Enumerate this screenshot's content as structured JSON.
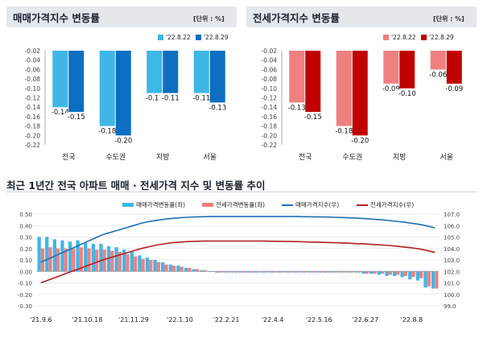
{
  "left_panel": {
    "title": "매매가격지수 변동률",
    "unit": "[단위 : %]",
    "legend": [
      "'22.8.22",
      "'22.8.29"
    ]
  },
  "right_panel": {
    "title": "전세가격지수 변동률",
    "unit": "[단위 : %]",
    "legend": [
      "'22.8.22",
      "'22.8.29"
    ]
  },
  "bottom_panel": {
    "title": "최근 1년간 전국 아파트 매매 · 전세가격 지수 및 변동률 추이",
    "legend": [
      "매매가격변동률(좌)",
      "전세가격변동률(좌)",
      "매매가격지수(우)",
      "전세가격지수(우)"
    ]
  },
  "colors": {
    "sale_light": "#3fb7e6",
    "sale_dark": "#0c6fc1",
    "jeonse_light": "#f08080",
    "jeonse_dark": "#c00000",
    "sale_index_line": "#1f6fb4",
    "jeonse_index_line": "#b21f1f"
  },
  "chart_data": [
    {
      "type": "bar",
      "title": "매매가격지수 변동률",
      "categories": [
        "전국",
        "수도권",
        "지방",
        "서울"
      ],
      "series": [
        {
          "name": "'22.8.22",
          "values": [
            -0.14,
            -0.18,
            -0.11,
            -0.11
          ]
        },
        {
          "name": "'22.8.29",
          "values": [
            -0.15,
            -0.2,
            -0.11,
            -0.13
          ]
        }
      ],
      "data_labels": [
        [
          "-0.14",
          "-0.18",
          "-0.11",
          "-0.11"
        ],
        [
          "-0.15",
          "-0.20",
          "-0.11",
          "-0.13"
        ]
      ],
      "ylim": [
        -0.22,
        -0.02
      ],
      "yticks": [
        -0.02,
        -0.04,
        -0.06,
        -0.08,
        -0.1,
        -0.12,
        -0.14,
        -0.16,
        -0.18,
        -0.2,
        -0.22
      ],
      "ytick_labels": [
        "-0.02",
        "-0.04",
        "-0.06",
        "-0.08",
        "-0.10",
        "-0.12",
        "-0.14",
        "-0.16",
        "-0.18",
        "-0.20",
        "-0.22"
      ],
      "grid": false,
      "legend": "top-right"
    },
    {
      "type": "bar",
      "title": "전세가격지수 변동률",
      "categories": [
        "전국",
        "수도권",
        "지방",
        "서울"
      ],
      "series": [
        {
          "name": "'22.8.22",
          "values": [
            -0.13,
            -0.18,
            -0.09,
            -0.06
          ]
        },
        {
          "name": "'22.8.29",
          "values": [
            -0.15,
            -0.2,
            -0.1,
            -0.09
          ]
        }
      ],
      "data_labels": [
        [
          "-0.13",
          "-0.18",
          "-0.09",
          "-0.06"
        ],
        [
          "-0.15",
          "-0.20",
          "-0.10",
          "-0.09"
        ]
      ],
      "ylim": [
        -0.22,
        -0.02
      ],
      "yticks": [
        -0.02,
        -0.04,
        -0.06,
        -0.08,
        -0.1,
        -0.12,
        -0.14,
        -0.16,
        -0.18,
        -0.2,
        -0.22
      ],
      "ytick_labels": [
        "-0.02",
        "-0.04",
        "-0.06",
        "-0.08",
        "-0.10",
        "-0.12",
        "-0.14",
        "-0.16",
        "-0.18",
        "-0.20",
        "-0.22"
      ],
      "grid": false,
      "legend": "top-right"
    },
    {
      "type": "bar",
      "title": "최근 1년간 전국 아파트 매매 · 전세가격 지수 및 변동률 추이",
      "x_tick_labels": [
        "'21.9.6",
        "'21.10.18",
        "'21.11.29",
        "'22.1.10",
        "'22.2.21",
        "'22.4.4",
        "'22.5.16",
        "'22.6.27",
        "'22.8.8"
      ],
      "x_tick_positions": [
        0,
        6,
        12,
        18,
        24,
        30,
        36,
        42,
        48
      ],
      "n_weeks": 52,
      "series": [
        {
          "name": "매매가격변동률(좌)",
          "axis": "left",
          "kind": "bar",
          "values": [
            0.3,
            0.3,
            0.28,
            0.27,
            0.26,
            0.27,
            0.25,
            0.24,
            0.24,
            0.22,
            0.21,
            0.19,
            0.17,
            0.14,
            0.12,
            0.1,
            0.08,
            0.06,
            0.05,
            0.03,
            0.02,
            0.01,
            0.0,
            -0.01,
            -0.01,
            -0.01,
            -0.01,
            -0.01,
            -0.01,
            -0.01,
            -0.01,
            -0.01,
            -0.01,
            -0.01,
            -0.01,
            -0.01,
            -0.01,
            -0.01,
            -0.01,
            -0.01,
            -0.01,
            -0.01,
            -0.02,
            -0.02,
            -0.03,
            -0.04,
            -0.04,
            -0.05,
            -0.07,
            -0.08,
            -0.14,
            -0.15
          ]
        },
        {
          "name": "전세가격변동률(좌)",
          "axis": "left",
          "kind": "bar",
          "values": [
            0.2,
            0.21,
            0.2,
            0.2,
            0.2,
            0.21,
            0.2,
            0.19,
            0.19,
            0.18,
            0.17,
            0.15,
            0.13,
            0.11,
            0.1,
            0.08,
            0.06,
            0.05,
            0.04,
            0.03,
            0.02,
            0.01,
            0.0,
            -0.01,
            -0.01,
            -0.01,
            -0.01,
            -0.01,
            -0.01,
            -0.01,
            -0.01,
            -0.01,
            -0.01,
            -0.01,
            -0.01,
            -0.01,
            -0.01,
            -0.01,
            -0.01,
            -0.01,
            -0.01,
            -0.01,
            -0.02,
            -0.02,
            -0.02,
            -0.03,
            -0.03,
            -0.04,
            -0.05,
            -0.06,
            -0.13,
            -0.15
          ]
        },
        {
          "name": "매매가격지수(우)",
          "axis": "right",
          "kind": "line",
          "values": [
            102.8,
            103.1,
            103.4,
            103.7,
            104.0,
            104.3,
            104.6,
            104.9,
            105.2,
            105.4,
            105.6,
            105.8,
            106.0,
            106.2,
            106.35,
            106.45,
            106.55,
            106.62,
            106.68,
            106.72,
            106.75,
            106.77,
            106.78,
            106.78,
            106.78,
            106.78,
            106.78,
            106.78,
            106.78,
            106.78,
            106.78,
            106.78,
            106.78,
            106.78,
            106.77,
            106.76,
            106.75,
            106.74,
            106.72,
            106.7,
            106.67,
            106.64,
            106.6,
            106.55,
            106.5,
            106.44,
            106.37,
            106.29,
            106.2,
            106.1,
            105.96,
            105.8
          ]
        },
        {
          "name": "전세가격지수(우)",
          "axis": "right",
          "kind": "line",
          "values": [
            101.0,
            101.25,
            101.5,
            101.75,
            102.0,
            102.25,
            102.5,
            102.75,
            103.0,
            103.2,
            103.4,
            103.6,
            103.8,
            104.0,
            104.15,
            104.3,
            104.4,
            104.5,
            104.55,
            104.6,
            104.62,
            104.64,
            104.65,
            104.65,
            104.65,
            104.65,
            104.65,
            104.65,
            104.65,
            104.64,
            104.63,
            104.62,
            104.61,
            104.6,
            104.58,
            104.56,
            104.54,
            104.52,
            104.5,
            104.48,
            104.45,
            104.42,
            104.39,
            104.35,
            104.31,
            104.26,
            104.2,
            104.13,
            104.05,
            103.96,
            103.82,
            103.65
          ]
        }
      ],
      "y_left_lim": [
        -0.3,
        0.5
      ],
      "y_left_ticks": [
        "-0.30",
        "-0.20",
        "-0.10",
        "0.00",
        "0.10",
        "0.20",
        "0.30",
        "0.40",
        "0.50"
      ],
      "y_right_lim": [
        99.0,
        107.0
      ],
      "y_right_ticks": [
        "99.0",
        "100.0",
        "101.0",
        "102.0",
        "103.0",
        "104.0",
        "105.0",
        "106.0",
        "107.0"
      ],
      "grid": true,
      "legend": "top"
    }
  ]
}
